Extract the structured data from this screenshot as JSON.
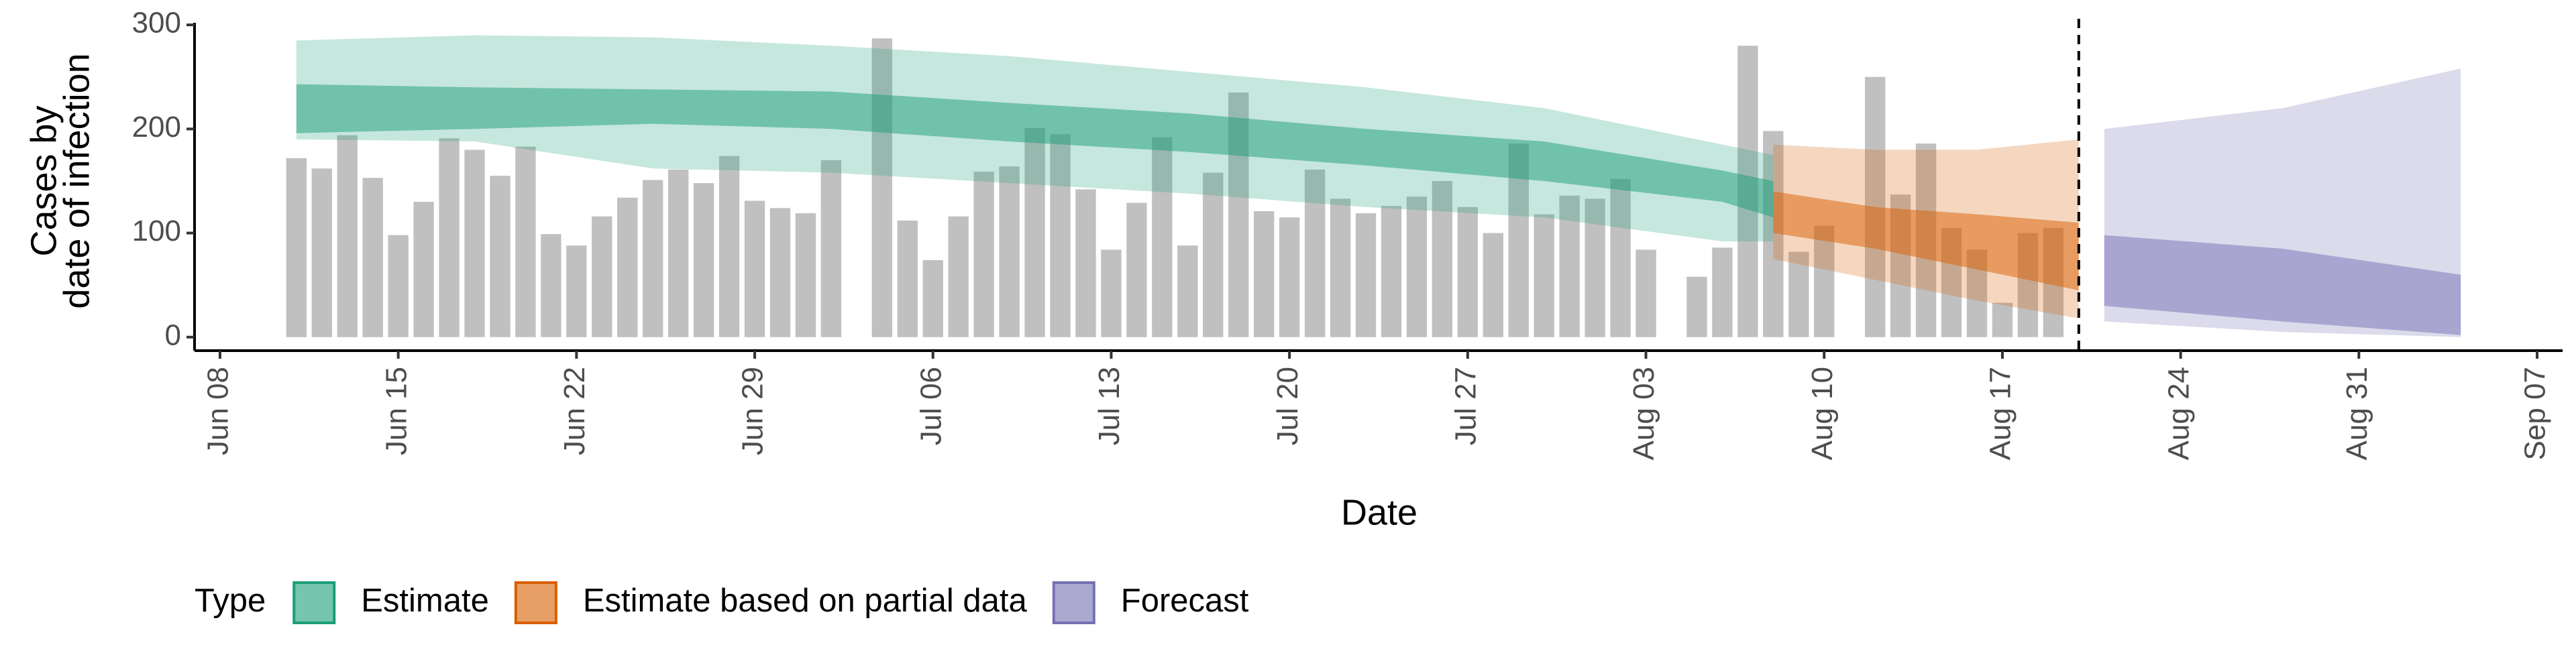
{
  "chart_data": {
    "type": "bar-band",
    "ylabel": [
      "Cases by",
      "date of infection"
    ],
    "xlabel": "Date",
    "x": [
      "Jun 11",
      "Jun 12",
      "Jun 13",
      "Jun 14",
      "Jun 15",
      "Jun 16",
      "Jun 17",
      "Jun 18",
      "Jun 19",
      "Jun 20",
      "Jun 21",
      "Jun 22",
      "Jun 23",
      "Jun 24",
      "Jun 25",
      "Jun 26",
      "Jun 27",
      "Jun 28",
      "Jun 29",
      "Jun 30",
      "Jul 01",
      "Jul 02",
      "Jul 03",
      "Jul 04",
      "Jul 05",
      "Jul 06",
      "Jul 07",
      "Jul 08",
      "Jul 09",
      "Jul 10",
      "Jul 11",
      "Jul 12",
      "Jul 13",
      "Jul 14",
      "Jul 15",
      "Jul 16",
      "Jul 17",
      "Jul 18",
      "Jul 19",
      "Jul 20",
      "Jul 21",
      "Jul 22",
      "Jul 23",
      "Jul 24",
      "Jul 25",
      "Jul 26",
      "Jul 27",
      "Jul 28",
      "Jul 29",
      "Jul 30",
      "Jul 31",
      "Aug 01",
      "Aug 02",
      "Aug 03",
      "Aug 04",
      "Aug 05",
      "Aug 06",
      "Aug 07",
      "Aug 08",
      "Aug 09",
      "Aug 10",
      "Aug 11",
      "Aug 12",
      "Aug 13",
      "Aug 14",
      "Aug 15",
      "Aug 16",
      "Aug 17",
      "Aug 18",
      "Aug 19"
    ],
    "values": [
      172,
      162,
      194,
      153,
      98,
      130,
      191,
      180,
      155,
      183,
      99,
      88,
      116,
      134,
      151,
      161,
      148,
      174,
      131,
      124,
      119,
      170,
      null,
      287,
      112,
      74,
      116,
      159,
      164,
      201,
      195,
      142,
      84,
      129,
      192,
      88,
      158,
      235,
      121,
      115,
      161,
      133,
      119,
      126,
      135,
      150,
      125,
      100,
      186,
      118,
      136,
      133,
      152,
      84,
      null,
      58,
      86,
      280,
      198,
      82,
      107,
      null,
      250,
      137,
      186,
      105,
      84,
      33,
      100,
      105
    ],
    "color": "#9e9e9e",
    "bands": [
      {
        "name": "Estimate",
        "color": "#1b9e77",
        "x": [
          "Jun 11",
          "Jun 18",
          "Jun 25",
          "Jul 02",
          "Jul 09",
          "Jul 16",
          "Jul 23",
          "Jul 30",
          "Aug 06",
          "Aug 08"
        ],
        "upper90": [
          285,
          290,
          288,
          280,
          270,
          255,
          240,
          220,
          185,
          175
        ],
        "lower90": [
          190,
          188,
          162,
          158,
          148,
          138,
          125,
          115,
          92,
          92
        ],
        "upper50": [
          243,
          240,
          238,
          236,
          225,
          215,
          200,
          188,
          160,
          150
        ],
        "lower50": [
          196,
          200,
          205,
          200,
          188,
          178,
          165,
          150,
          130,
          115
        ]
      },
      {
        "name": "Estimate based on partial data",
        "color": "#d95f02",
        "x": [
          "Aug 08",
          "Aug 12",
          "Aug 16",
          "Aug 20"
        ],
        "upper90": [
          185,
          180,
          180,
          190
        ],
        "lower90": [
          75,
          55,
          35,
          18
        ],
        "upper50": [
          140,
          125,
          118,
          110
        ],
        "lower50": [
          100,
          85,
          65,
          45
        ]
      },
      {
        "name": "Forecast",
        "color": "#7570b3",
        "x": [
          "Aug 21",
          "Aug 28",
          "Sep 04"
        ],
        "upper90": [
          200,
          220,
          258
        ],
        "lower90": [
          15,
          5,
          0
        ],
        "upper50": [
          98,
          85,
          60
        ],
        "lower50": [
          30,
          15,
          2
        ]
      }
    ],
    "vline": "Aug 20",
    "legend_title": "Type",
    "legend": "bottom",
    "xlim": [
      "Jun 07",
      "Sep 08"
    ],
    "xticks": [
      "Jun 08",
      "Jun 15",
      "Jun 22",
      "Jun 29",
      "Jul 06",
      "Jul 13",
      "Jul 20",
      "Jul 27",
      "Aug 03",
      "Aug 10",
      "Aug 17",
      "Aug 24",
      "Aug 31",
      "Sep 07"
    ],
    "ylim": [
      -13,
      302
    ],
    "yticks": [
      0,
      100,
      200,
      300
    ]
  }
}
